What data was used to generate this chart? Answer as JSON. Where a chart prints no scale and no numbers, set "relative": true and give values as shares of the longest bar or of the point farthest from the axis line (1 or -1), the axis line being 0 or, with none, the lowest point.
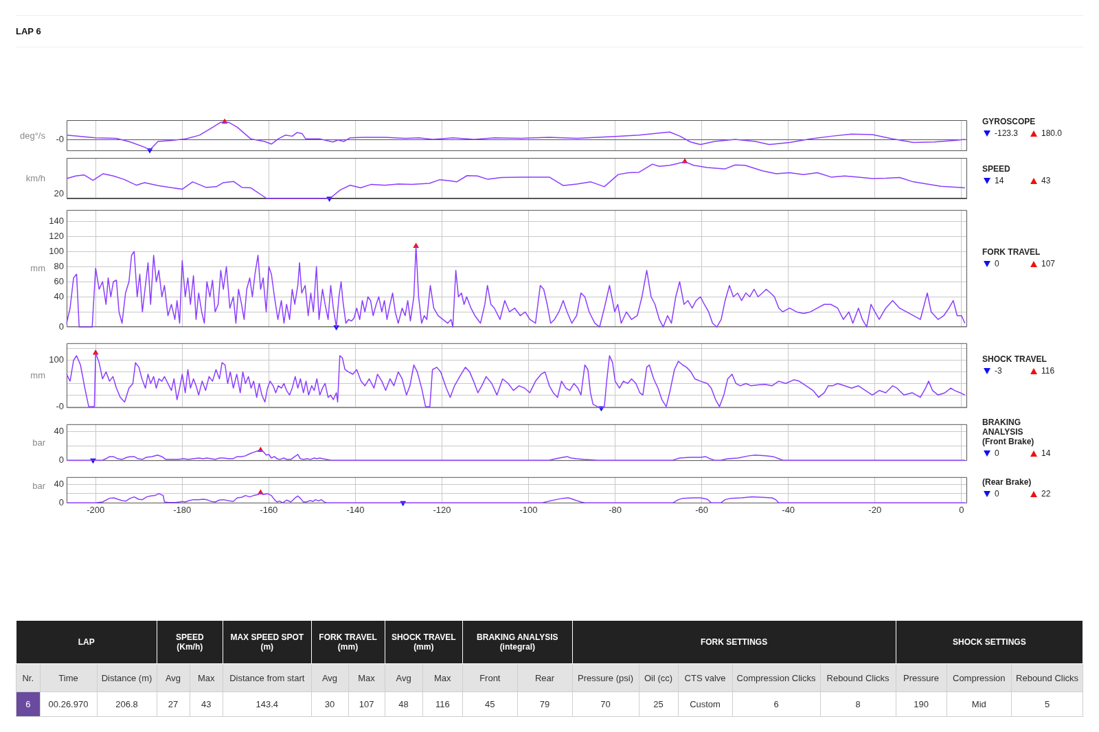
{
  "chart_data": [
    {
      "type": "line",
      "title": "LAP 6",
      "legend_title": "GYROSCOPE",
      "ylabel": "deg°/s",
      "relative": true,
      "grid": "x",
      "tick_labels": false,
      "xlim": [
        -206.7,
        1.3
      ],
      "xticks": [
        -200,
        -180,
        -160,
        -140,
        -120,
        -100,
        -80,
        -60,
        -40,
        -20,
        0
      ],
      "legend": "right",
      "series": [
        {
          "type": "line",
          "color": "#8b3dff",
          "x": [
            -206.7,
            -200,
            -195.2,
            -192,
            -188.7,
            -187.5,
            -185.6,
            -182.4,
            -179.2,
            -176,
            -172.9,
            -171.2,
            -170.2,
            -169.2,
            -167.3,
            -164.2,
            -161,
            -159.4,
            -157.8,
            -156.2,
            -154.6,
            -153.5,
            -152.3,
            -151.5,
            -148.3,
            -146.7,
            -145.2,
            -144,
            -142.7,
            -141.2,
            -138,
            -133.2,
            -128.5,
            -125.3,
            -122.1,
            -117.4,
            -112.6,
            -107.9,
            -101.5,
            -95.2,
            -88.8,
            -84.1,
            -79.3,
            -74.5,
            -69.8,
            -67.4,
            -65,
            -62.6,
            -60.3,
            -57.1,
            -52.3,
            -47.6,
            -44.4,
            -39.7,
            -34.9,
            -30.1,
            -25.4,
            -20.6,
            -15.9,
            -11.1,
            -6.3,
            -1.6,
            0.8
          ],
          "values": [
            0.24,
            0.09,
            0.06,
            -0.15,
            -0.45,
            -0.61,
            -0.12,
            -0.06,
            0.03,
            0.24,
            0.7,
            0.97,
            1,
            0.97,
            0.7,
            0.03,
            -0.12,
            -0.27,
            0.03,
            0.24,
            0.18,
            0.39,
            0.33,
            0.03,
            0.03,
            -0.06,
            -0.15,
            -0.03,
            -0.12,
            0.09,
            0.12,
            0.12,
            0.06,
            0.09,
            0,
            0.09,
            0,
            0.09,
            0.06,
            0.12,
            0.06,
            0.12,
            0.18,
            0.24,
            0.36,
            0.42,
            0.18,
            -0.15,
            -0.3,
            -0.12,
            0,
            -0.12,
            -0.3,
            -0.18,
            0.03,
            0.18,
            0.3,
            0.27,
            0.03,
            -0.18,
            -0.15,
            -0.06,
            0
          ]
        },
        {
          "type": "scatter",
          "name": "-123.3",
          "color": "#1010ee",
          "marker": "triangle",
          "x": [
            -187.5
          ],
          "values": [
            -0.61
          ]
        },
        {
          "type": "scatter",
          "name": "180.0",
          "color": "#ee1010",
          "marker": "triangle",
          "x": [
            -170.2
          ],
          "values": [
            1
          ]
        }
      ],
      "annotations": [
        "-0"
      ]
    },
    {
      "type": "line",
      "legend_title": "SPEED",
      "ylabel": "km/h",
      "relative": true,
      "grid": "x",
      "tick_labels": false,
      "xlim": [
        -206.7,
        1.3
      ],
      "xticks": [
        -200,
        -180,
        -160,
        -140,
        -120,
        -100,
        -80,
        -60,
        -40,
        -20,
        0
      ],
      "legend": "right",
      "series": [
        {
          "type": "line",
          "color": "#8b3dff",
          "x": [
            -206.7,
            -204.6,
            -202.7,
            -200.6,
            -198.3,
            -195.9,
            -193.5,
            -190.6,
            -188.7,
            -185.6,
            -180,
            -177.6,
            -174.5,
            -172.1,
            -170.5,
            -168.1,
            -166.2,
            -164.2,
            -160.5,
            -145.9,
            -143.5,
            -141.2,
            -138.8,
            -136.4,
            -133.2,
            -130.1,
            -126.9,
            -122.9,
            -120.5,
            -118.2,
            -116.6,
            -114.2,
            -111.8,
            -109.4,
            -106.3,
            -101.5,
            -95.2,
            -92,
            -88.8,
            -85.6,
            -82.5,
            -79.3,
            -76.9,
            -74.5,
            -71.4,
            -69.8,
            -67.4,
            -65.8,
            -63.9,
            -61.9,
            -58.7,
            -54.7,
            -52.3,
            -50,
            -46,
            -42.8,
            -39.7,
            -36.5,
            -33.3,
            -30.1,
            -27,
            -23.8,
            -20.6,
            -17.4,
            -14.3,
            -11.1,
            -4.8,
            0.8
          ],
          "values": [
            0.54,
            0.61,
            0.64,
            0.49,
            0.67,
            0.61,
            0.52,
            0.36,
            0.43,
            0.35,
            0.25,
            0.45,
            0.3,
            0.32,
            0.43,
            0.46,
            0.3,
            0.29,
            0,
            0,
            0.23,
            0.36,
            0.29,
            0.38,
            0.36,
            0.39,
            0.38,
            0.41,
            0.51,
            0.48,
            0.45,
            0.62,
            0.61,
            0.52,
            0.57,
            0.58,
            0.58,
            0.35,
            0.39,
            0.45,
            0.32,
            0.65,
            0.7,
            0.71,
            0.93,
            0.87,
            0.9,
            0.94,
            1,
            0.9,
            0.84,
            0.8,
            0.91,
            0.9,
            0.75,
            0.67,
            0.7,
            0.65,
            0.7,
            0.58,
            0.61,
            0.58,
            0.54,
            0.55,
            0.57,
            0.45,
            0.33,
            0.29
          ]
        },
        {
          "type": "scatter",
          "name": "14",
          "color": "#1010ee",
          "marker": "triangle",
          "x": [
            -146
          ],
          "values": [
            0
          ]
        },
        {
          "type": "scatter",
          "name": "43",
          "color": "#ee1010",
          "marker": "triangle",
          "x": [
            -63.9
          ],
          "values": [
            1
          ]
        }
      ],
      "annotations": [
        "20"
      ]
    },
    {
      "type": "line",
      "legend_title": "FORK TRAVEL",
      "ylabel": "mm",
      "grid": true,
      "tick_labels": "y",
      "xlim": [
        -206.7,
        1.3
      ],
      "xticks": [
        -200,
        -180,
        -160,
        -140,
        -120,
        -100,
        -80,
        -60,
        -40,
        -20,
        0
      ],
      "ylim": [
        0,
        155
      ],
      "yticks": [
        0,
        {
          "value": 20,
          "label": null
        },
        40,
        60,
        80,
        100,
        120,
        140
      ],
      "legend": "right",
      "series": [
        {
          "type": "line",
          "color": "#8b3dff",
          "x": [
            -206.7,
            -205.9,
            -205.1,
            -204.4,
            -203.8,
            -200.8,
            -200,
            -199.2,
            -198.4,
            -197.6,
            -197.1,
            -196.5,
            -195.9,
            -195.2,
            -194.6,
            -193.9,
            -193.1,
            -192.3,
            -191.7,
            -191.1,
            -190.4,
            -189.8,
            -189.2,
            -188.5,
            -187.9,
            -187.3,
            -186.6,
            -186,
            -185.4,
            -184.7,
            -184.1,
            -183.3,
            -182.5,
            -181.7,
            -181.2,
            -180.6,
            -180,
            -179.3,
            -178.7,
            -178.1,
            -177.4,
            -176.8,
            -176.2,
            -175.5,
            -174.9,
            -174.3,
            -173.6,
            -173,
            -172.4,
            -171.7,
            -171.1,
            -170.5,
            -169.8,
            -169,
            -168.2,
            -167.6,
            -167,
            -166.3,
            -165.7,
            -165.1,
            -164.4,
            -163.8,
            -163.2,
            -162.5,
            -161.9,
            -161.3,
            -160.6,
            -160,
            -159.4,
            -158.7,
            -157.9,
            -157.1,
            -156.5,
            -155.9,
            -155.2,
            -154.6,
            -154,
            -153.3,
            -152.9,
            -152.4,
            -151.6,
            -150.9,
            -150.3,
            -149.7,
            -149,
            -148.4,
            -147.6,
            -147,
            -146.3,
            -145.7,
            -145.1,
            -144.4,
            -143.8,
            -143.3,
            -142.9,
            -142.2,
            -141.6,
            -140.9,
            -140.3,
            -139.7,
            -139,
            -138.4,
            -137.8,
            -137.1,
            -136.5,
            -135.9,
            -135.2,
            -134.6,
            -133.9,
            -133.3,
            -132.7,
            -132,
            -131.4,
            -130.8,
            -130.1,
            -129.2,
            -128.5,
            -127.9,
            -127.3,
            -126.5,
            -126,
            -125.4,
            -124.7,
            -124.1,
            -123.5,
            -122.7,
            -121.9,
            -120.9,
            -119.8,
            -118.7,
            -117.9,
            -117.5,
            -116.8,
            -116.2,
            -115.5,
            -114.9,
            -114.3,
            -113.3,
            -112.4,
            -111.1,
            -110.1,
            -109.5,
            -108.7,
            -107.9,
            -106.6,
            -105.5,
            -104.4,
            -103.2,
            -101.9,
            -100.8,
            -99.7,
            -98.4,
            -97.3,
            -96.5,
            -95.7,
            -94.9,
            -94,
            -93,
            -92,
            -91.1,
            -90,
            -88.9,
            -87.9,
            -87,
            -86,
            -84.7,
            -83.6,
            -82.5,
            -81.3,
            -80.1,
            -79.4,
            -78.6,
            -77.4,
            -76.2,
            -74.9,
            -73.8,
            -72.7,
            -71.7,
            -70.8,
            -69.8,
            -68.9,
            -67.9,
            -67,
            -66,
            -65.1,
            -64.1,
            -63.2,
            -62.2,
            -61.3,
            -60.3,
            -59.4,
            -58.4,
            -57.5,
            -56.5,
            -55.5,
            -54.6,
            -53.6,
            -52.7,
            -51.7,
            -50.8,
            -49.8,
            -48.9,
            -47.9,
            -47,
            -46,
            -45.1,
            -44.1,
            -43.2,
            -42.2,
            -41.3,
            -39.7,
            -38.1,
            -36.5,
            -34.9,
            -33.3,
            -31.7,
            -30.2,
            -28.6,
            -27.3,
            -26,
            -25.1,
            -23.8,
            -22.9,
            -21.9,
            -20.9,
            -20,
            -19,
            -17.5,
            -15.9,
            -14.3,
            -12.7,
            -11.1,
            -9.5,
            -7.9,
            -7,
            -5.4,
            -4.1,
            -2.9,
            -1.9,
            -1,
            0,
            0.8
          ],
          "values": [
            5,
            25,
            65,
            70,
            0,
            0,
            78,
            50,
            60,
            30,
            65,
            40,
            60,
            62,
            20,
            5,
            45,
            60,
            95,
            100,
            40,
            70,
            20,
            55,
            85,
            30,
            95,
            60,
            75,
            40,
            55,
            15,
            30,
            10,
            35,
            5,
            88,
            40,
            65,
            30,
            68,
            10,
            45,
            20,
            5,
            60,
            40,
            62,
            20,
            30,
            75,
            50,
            80,
            25,
            40,
            5,
            50,
            30,
            10,
            50,
            65,
            40,
            70,
            95,
            50,
            65,
            20,
            80,
            70,
            40,
            10,
            35,
            5,
            30,
            10,
            50,
            30,
            55,
            85,
            45,
            55,
            15,
            45,
            20,
            80,
            10,
            50,
            30,
            10,
            55,
            25,
            0,
            40,
            60,
            35,
            5,
            10,
            8,
            12,
            25,
            10,
            35,
            20,
            40,
            35,
            15,
            30,
            40,
            20,
            35,
            10,
            30,
            45,
            20,
            5,
            25,
            15,
            35,
            8,
            40,
            107,
            40,
            5,
            15,
            10,
            55,
            25,
            15,
            10,
            5,
            10,
            0,
            75,
            40,
            45,
            30,
            40,
            25,
            15,
            5,
            30,
            55,
            30,
            25,
            10,
            35,
            20,
            25,
            15,
            20,
            10,
            5,
            55,
            50,
            30,
            5,
            10,
            20,
            35,
            20,
            5,
            15,
            45,
            40,
            20,
            5,
            0,
            25,
            55,
            20,
            30,
            5,
            20,
            10,
            15,
            40,
            75,
            40,
            30,
            10,
            0,
            15,
            5,
            40,
            60,
            30,
            35,
            25,
            35,
            40,
            30,
            20,
            5,
            0,
            10,
            35,
            55,
            40,
            45,
            35,
            45,
            40,
            50,
            40,
            45,
            50,
            45,
            40,
            25,
            20,
            25,
            20,
            18,
            20,
            25,
            30,
            30,
            25,
            10,
            20,
            5,
            25,
            10,
            0,
            30,
            20,
            10,
            25,
            35,
            25,
            20,
            15,
            10,
            45,
            20,
            10,
            15,
            25,
            35,
            15,
            15,
            5
          ]
        },
        {
          "type": "scatter",
          "name": "0",
          "color": "#1010ee",
          "marker": "triangle",
          "x": [
            -144.4
          ],
          "values": [
            0
          ]
        },
        {
          "type": "scatter",
          "name": "107",
          "color": "#ee1010",
          "marker": "triangle",
          "x": [
            -126
          ],
          "values": [
            107
          ]
        }
      ]
    },
    {
      "type": "line",
      "legend_title": "SHOCK TRAVEL",
      "ylabel": "mm",
      "grid": true,
      "tick_labels": "y",
      "xlim": [
        -206.7,
        1.3
      ],
      "xticks": [
        -200,
        -180,
        -160,
        -140,
        -120,
        -100,
        -80,
        -60,
        -40,
        -20,
        0
      ],
      "ylim": [
        -3,
        137
      ],
      "yticks": [
        {
          "value": 0,
          "label": "-0"
        },
        {
          "value": 25,
          "label": null
        },
        {
          "value": 50,
          "label": null
        },
        {
          "value": 75,
          "label": null
        },
        100,
        {
          "value": 125,
          "label": null
        }
      ],
      "legend": "right",
      "series": [
        {
          "type": "line",
          "color": "#8b3dff",
          "x": [
            -206.7,
            -205.9,
            -205.1,
            -204.4,
            -203.5,
            -202.5,
            -201.6,
            -200.3,
            -200,
            -199.2,
            -198.4,
            -197.6,
            -196.8,
            -196,
            -195.2,
            -194.3,
            -193.3,
            -192.3,
            -191.4,
            -190.8,
            -190,
            -189.3,
            -188.5,
            -187.9,
            -187.3,
            -186.6,
            -186,
            -185.4,
            -184.7,
            -184.1,
            -183.3,
            -182.5,
            -181.9,
            -181.2,
            -180.6,
            -180,
            -179.3,
            -178.7,
            -178.1,
            -177.4,
            -176.8,
            -176.2,
            -175.4,
            -174.6,
            -173.8,
            -173,
            -172.2,
            -171.4,
            -170.8,
            -170.1,
            -169.5,
            -168.9,
            -168.2,
            -167.4,
            -166.6,
            -166,
            -165.4,
            -164.7,
            -164.1,
            -163.5,
            -162.8,
            -162.2,
            -161.6,
            -160.9,
            -160.3,
            -159.7,
            -159,
            -158.4,
            -157.8,
            -157.1,
            -156.5,
            -155.9,
            -155.2,
            -154.6,
            -153.9,
            -153.3,
            -152.7,
            -152,
            -151.4,
            -150.8,
            -150.1,
            -149.5,
            -148.9,
            -148.2,
            -147.6,
            -147,
            -146.3,
            -145.7,
            -145.1,
            -144.4,
            -144.1,
            -143.6,
            -143,
            -142.4,
            -141.6,
            -140.6,
            -139.7,
            -138.7,
            -137.8,
            -136.8,
            -135.7,
            -134.9,
            -133.9,
            -133,
            -132,
            -131.1,
            -130.1,
            -129.2,
            -128.2,
            -127.4,
            -126.5,
            -125.7,
            -124.7,
            -123.8,
            -122.8,
            -122.2,
            -121.2,
            -120.3,
            -119,
            -118.1,
            -117.1,
            -115.9,
            -114.6,
            -113.6,
            -112.7,
            -111.7,
            -110.8,
            -109.8,
            -108.5,
            -107.3,
            -106,
            -104.7,
            -103.5,
            -102.2,
            -100.9,
            -99.7,
            -98.4,
            -97.1,
            -96.2,
            -95.2,
            -94.3,
            -93.3,
            -92.4,
            -91.4,
            -90.5,
            -89.5,
            -88.6,
            -87.9,
            -87,
            -86.3,
            -85.7,
            -85.1,
            -84.1,
            -83.2,
            -82.5,
            -81.9,
            -81.3,
            -80.6,
            -80,
            -79,
            -78.1,
            -77.1,
            -76.2,
            -75.2,
            -74.3,
            -73.6,
            -72.7,
            -72.1,
            -71.1,
            -70.1,
            -69.2,
            -68.2,
            -67.3,
            -66.3,
            -65.4,
            -64.4,
            -63.5,
            -62.5,
            -61.6,
            -60.3,
            -58.7,
            -57.8,
            -56.8,
            -55.9,
            -54.9,
            -54,
            -53,
            -52.1,
            -51.1,
            -49.8,
            -48.6,
            -47,
            -45.4,
            -43.8,
            -42.2,
            -40.6,
            -38.7,
            -37.5,
            -35.9,
            -34.3,
            -33,
            -31.7,
            -30.8,
            -29.8,
            -28.6,
            -27,
            -25.4,
            -23.8,
            -22.2,
            -20.6,
            -19,
            -17.5,
            -15.9,
            -14.9,
            -13.3,
            -11.4,
            -9.5,
            -8.3,
            -7.6,
            -6.7,
            -5.4,
            -3.8,
            -2.5,
            -1.6,
            -0.3,
            0.8
          ],
          "values": [
            70,
            55,
            100,
            110,
            90,
            40,
            0,
            0,
            116,
            95,
            60,
            75,
            55,
            65,
            40,
            20,
            10,
            40,
            50,
            95,
            85,
            60,
            40,
            70,
            50,
            65,
            40,
            60,
            55,
            65,
            50,
            35,
            60,
            15,
            40,
            70,
            30,
            80,
            40,
            60,
            45,
            25,
            55,
            35,
            65,
            55,
            80,
            60,
            95,
            90,
            50,
            75,
            40,
            70,
            30,
            75,
            50,
            65,
            40,
            55,
            20,
            50,
            25,
            10,
            40,
            55,
            45,
            30,
            45,
            40,
            50,
            35,
            25,
            40,
            65,
            40,
            60,
            30,
            55,
            25,
            45,
            35,
            60,
            25,
            40,
            50,
            20,
            25,
            15,
            30,
            10,
            110,
            105,
            80,
            75,
            70,
            80,
            55,
            45,
            60,
            40,
            70,
            55,
            35,
            60,
            45,
            75,
            60,
            25,
            45,
            90,
            75,
            40,
            0,
            0,
            80,
            85,
            75,
            40,
            20,
            45,
            65,
            85,
            75,
            55,
            30,
            45,
            65,
            50,
            25,
            60,
            50,
            35,
            45,
            40,
            30,
            55,
            70,
            75,
            45,
            30,
            20,
            55,
            40,
            35,
            50,
            40,
            25,
            90,
            80,
            30,
            5,
            0,
            -3,
            0,
            60,
            110,
            95,
            55,
            40,
            55,
            50,
            60,
            50,
            30,
            25,
            85,
            90,
            60,
            40,
            15,
            0,
            35,
            80,
            98,
            90,
            85,
            75,
            60,
            55,
            50,
            40,
            15,
            0,
            25,
            60,
            70,
            50,
            45,
            50,
            45,
            47,
            48,
            45,
            55,
            50,
            58,
            55,
            45,
            35,
            20,
            30,
            45,
            45,
            50,
            45,
            40,
            45,
            35,
            25,
            35,
            30,
            45,
            40,
            25,
            30,
            20,
            40,
            55,
            35,
            25,
            30,
            40,
            35,
            30,
            25
          ]
        },
        {
          "type": "scatter",
          "name": "-3",
          "color": "#1010ee",
          "marker": "triangle",
          "x": [
            -83.2
          ],
          "values": [
            -3
          ]
        },
        {
          "type": "scatter",
          "name": "116",
          "color": "#ee1010",
          "marker": "triangle",
          "x": [
            -200
          ],
          "values": [
            116
          ]
        }
      ]
    },
    {
      "type": "other",
      "title": "BRAKING ANALYSIS"
    },
    {
      "type": "line",
      "legend_title": "(Front Brake)",
      "ylabel": "bar",
      "grid": true,
      "tick_labels": "y",
      "xlim": [
        -206.7,
        1.3
      ],
      "xticks": [
        -200,
        -180,
        -160,
        -140,
        -120,
        -100,
        -80,
        -60,
        -40,
        -20,
        0
      ],
      "ylim": [
        -1,
        50
      ],
      "yticks": [
        0,
        {
          "value": 20,
          "label": null
        },
        40
      ],
      "legend": "right",
      "series": [
        {
          "type": "line",
          "color": "#8b3dff",
          "x": [
            -206.7,
            -198.4,
            -197.6,
            -196.8,
            -195.9,
            -194.9,
            -193.9,
            -192.8,
            -192,
            -191.1,
            -190.2,
            -189.2,
            -188.3,
            -187,
            -185.7,
            -184.7,
            -183.8,
            -182.5,
            -180.9,
            -179.7,
            -178.6,
            -177.4,
            -176.2,
            -175.2,
            -174.3,
            -173.3,
            -172.4,
            -171.4,
            -170.5,
            -169.2,
            -168.3,
            -167.3,
            -166.3,
            -165.4,
            -164.4,
            -163.5,
            -162.5,
            -161.9,
            -161.3,
            -160.6,
            -160,
            -159.4,
            -158.7,
            -158.1,
            -157.5,
            -156.5,
            -155.9,
            -154.9,
            -154,
            -153.3,
            -152.7,
            -152,
            -151.1,
            -150.4,
            -149.5,
            -148.9,
            -148.2,
            -147.6,
            -146.7,
            -145.7,
            -95.2,
            -93.7,
            -92.1,
            -91.1,
            -90.2,
            -88.9,
            -87.3,
            -84.1,
            -66.7,
            -65.1,
            -62.7,
            -60.3,
            -59.1,
            -58.1,
            -57.1,
            -55.6,
            -54,
            -51.6,
            -49.2,
            -47.6,
            -45.2,
            -43.5,
            -42.2,
            -41.3,
            0.8
          ],
          "values": [
            0,
            0,
            2,
            5,
            5,
            2,
            1,
            4,
            5,
            5,
            2,
            1,
            4,
            5,
            7,
            5,
            1,
            1,
            1,
            2,
            1,
            2,
            3,
            2,
            3,
            2,
            1,
            3,
            3,
            2,
            2,
            5,
            5,
            6,
            9,
            11,
            13,
            14,
            12,
            7,
            8,
            3,
            5,
            2,
            1,
            3,
            1,
            1,
            5,
            8,
            2,
            1,
            2,
            1,
            3,
            2,
            3,
            2,
            1,
            0,
            0,
            2,
            4,
            5,
            3,
            2,
            1,
            0,
            0,
            3,
            4,
            4,
            5,
            2,
            0,
            0,
            2,
            3,
            6,
            7,
            6,
            5,
            2,
            0,
            0
          ]
        },
        {
          "type": "scatter",
          "name": "0",
          "color": "#1010ee",
          "marker": "triangle",
          "x": [
            -200.6
          ],
          "values": [
            0
          ]
        },
        {
          "type": "scatter",
          "name": "14",
          "color": "#ee1010",
          "marker": "triangle",
          "x": [
            -161.9
          ],
          "values": [
            14
          ]
        }
      ]
    },
    {
      "type": "line",
      "legend_title": "(Rear Brake)",
      "ylabel": "bar",
      "grid": true,
      "xlim": [
        -206.7,
        1.3
      ],
      "xticks": [
        -200,
        -180,
        -160,
        -140,
        -120,
        -100,
        -80,
        -60,
        -40,
        -20,
        0
      ],
      "ylim": [
        -1,
        56
      ],
      "yticks": [
        0,
        {
          "value": 20,
          "label": null
        },
        40
      ],
      "legend": "right",
      "series": [
        {
          "type": "line",
          "color": "#8b3dff",
          "x": [
            -206.7,
            -200,
            -198.4,
            -197.4,
            -196.8,
            -195.8,
            -194.9,
            -193.9,
            -193,
            -192,
            -191.1,
            -190.1,
            -189.2,
            -188.2,
            -187.3,
            -186.3,
            -185.4,
            -184.4,
            -184.1,
            -183.2,
            -181.6,
            -180.6,
            -180,
            -179.3,
            -178.4,
            -177.4,
            -176.2,
            -175.2,
            -174.3,
            -173.3,
            -172.4,
            -171.4,
            -170.5,
            -169.5,
            -168.2,
            -167.3,
            -166.3,
            -165.4,
            -164.4,
            -163.5,
            -162.5,
            -161.9,
            -161.3,
            -160.3,
            -159.4,
            -158.7,
            -158.1,
            -157.5,
            -156.8,
            -155.9,
            -154.9,
            -153.9,
            -153.3,
            -152.7,
            -152,
            -151.4,
            -150.4,
            -149.8,
            -149.2,
            -148.5,
            -147.9,
            -147.3,
            -146.7,
            -96.8,
            -95.2,
            -93.7,
            -92.1,
            -90.8,
            -89.8,
            -88.9,
            -87.9,
            -87,
            -66.7,
            -65.4,
            -64.3,
            -61.9,
            -60.3,
            -58.7,
            -57.8,
            -55.6,
            -54.6,
            -53.3,
            -50.8,
            -48.4,
            -46,
            -43.8,
            -42.9,
            -42.2,
            0.8
          ],
          "values": [
            0,
            0,
            2,
            7,
            10,
            11,
            8,
            5,
            4,
            10,
            13,
            8,
            7,
            13,
            15,
            16,
            20,
            16,
            2,
            1,
            1,
            2,
            3,
            2,
            5,
            7,
            7,
            8,
            7,
            3,
            2,
            6,
            7,
            5,
            3,
            11,
            12,
            16,
            13,
            16,
            18,
            22,
            18,
            20,
            16,
            7,
            2,
            4,
            0,
            6,
            2,
            11,
            15,
            10,
            2,
            2,
            5,
            3,
            7,
            4,
            7,
            3,
            0,
            0,
            4,
            7,
            10,
            11,
            8,
            5,
            2,
            0,
            0,
            7,
            10,
            11,
            11,
            8,
            0,
            0,
            7,
            10,
            11,
            13,
            12,
            11,
            7,
            0,
            0
          ]
        },
        {
          "type": "scatter",
          "name": "0",
          "color": "#1010ee",
          "marker": "triangle",
          "x": [
            -129
          ],
          "values": [
            0
          ]
        },
        {
          "type": "scatter",
          "name": "22",
          "color": "#ee1010",
          "marker": "triangle",
          "x": [
            -161.9
          ],
          "values": [
            22
          ]
        }
      ]
    },
    {
      "type": "other",
      "annotations": [
        "LAP",
        "SPEED\n(Km/h)",
        "MAX SPEED SPOT\n(m)",
        "FORK TRAVEL\n(mm)",
        "SHOCK TRAVEL\n(mm)",
        "BRAKING ANALYSIS\n(integral)",
        "FORK SETTINGS",
        "SHOCK SETTINGS",
        "Nr.",
        "Time",
        "Distance (m)",
        "Avg",
        "Max",
        "Distance from start",
        "Avg",
        "Max",
        "Avg",
        "Max",
        "Front",
        "Rear",
        "Pressure (psi)",
        "Oil (cc)",
        "CTS valve",
        "Compression Clicks",
        "Rebound Clicks",
        "Pressure",
        "Compression",
        "Rebound Clicks",
        "6",
        "00.26.970",
        "206.8",
        "27",
        "43",
        "143.4",
        "30",
        "107",
        "48",
        "116",
        "45",
        "79",
        "70",
        "25",
        "Custom",
        "6",
        "8",
        "190",
        "Mid",
        "5"
      ]
    }
  ]
}
